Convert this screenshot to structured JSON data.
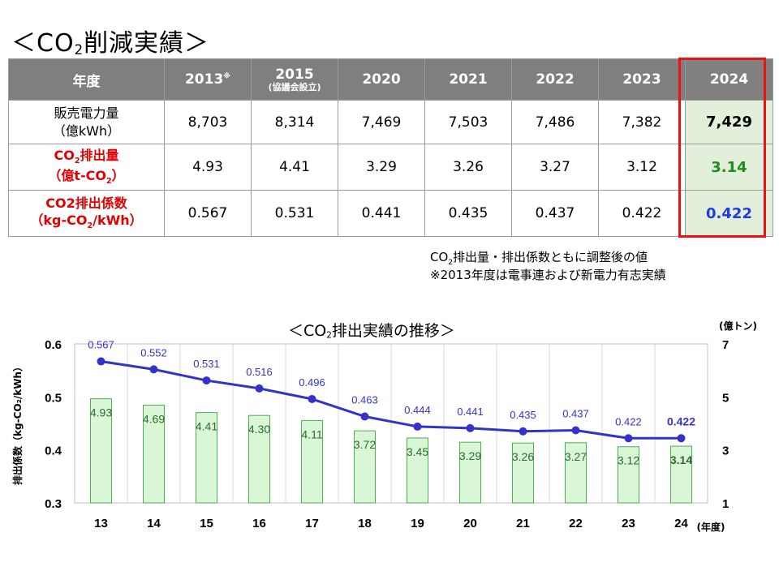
{
  "page_title": {
    "prefix": "＜CO",
    "sub": "2",
    "suffix": "削減実績＞"
  },
  "table": {
    "header_label": "年度",
    "years": [
      {
        "main": "2013",
        "sup": "※",
        "small": ""
      },
      {
        "main": "2015",
        "sup": "",
        "small": "(協議会設立)"
      },
      {
        "main": "2020",
        "sup": "",
        "small": ""
      },
      {
        "main": "2021",
        "sup": "",
        "small": ""
      },
      {
        "main": "2022",
        "sup": "",
        "small": ""
      },
      {
        "main": "2023",
        "sup": "",
        "small": ""
      },
      {
        "main": "2024",
        "sup": "",
        "small": ""
      }
    ],
    "row1": {
      "line1": "販売電力量",
      "line2": "（億kWh）",
      "values": [
        "8,703",
        "8,314",
        "7,469",
        "7,503",
        "7,486",
        "7,382",
        "7,429"
      ]
    },
    "row2": {
      "l1a": "CO",
      "l1sub": "2",
      "l1b": "排出量",
      "l2a": "（億t-CO",
      "l2sub": "2",
      "l2b": "）",
      "values": [
        "4.93",
        "4.41",
        "3.29",
        "3.26",
        "3.27",
        "3.12",
        "3.14"
      ]
    },
    "row3": {
      "l1": "CO2排出係数",
      "l2a": "（kg-CO",
      "l2sub": "2",
      "l2b": "/kWh）",
      "values": [
        "0.567",
        "0.531",
        "0.441",
        "0.435",
        "0.437",
        "0.422",
        "0.422"
      ]
    }
  },
  "notes": {
    "n1a": "CO",
    "n1sub": "2",
    "n1b": "排出量・排出係数ともに調整後の値",
    "n2": "※2013年度は電事連および新電力有志実績"
  },
  "chart_title": {
    "prefix": "＜CO",
    "sub": "2",
    "suffix": "排出実績の推移＞"
  },
  "colors": {
    "bar_fill": "#d9f7d6",
    "bar_stroke": "#4caf50",
    "line": "#3333cc",
    "highlight_border": "#ee1111",
    "header_bg": "#7f7f7f",
    "bar_label": "#2e6b2e"
  },
  "chart_data": {
    "type": "bar+line",
    "categories": [
      "13",
      "14",
      "15",
      "16",
      "17",
      "18",
      "19",
      "20",
      "21",
      "22",
      "23",
      "24"
    ],
    "xlabel": "(年度)",
    "series": [
      {
        "type": "line",
        "axis": "left",
        "values": [
          0.567,
          0.552,
          0.531,
          0.516,
          0.496,
          0.463,
          0.444,
          0.441,
          0.435,
          0.437,
          0.422,
          0.422
        ]
      },
      {
        "type": "bar",
        "axis": "right",
        "values": [
          4.93,
          4.69,
          4.41,
          4.3,
          4.11,
          3.72,
          3.45,
          3.29,
          3.26,
          3.27,
          3.12,
          3.14
        ]
      }
    ],
    "line_labels": [
      "0.567",
      "0.552",
      "0.531",
      "0.516",
      "0.496",
      "0.463",
      "0.444",
      "0.441",
      "0.435",
      "0.437",
      "0.422",
      "0.422"
    ],
    "bar_labels": [
      "4.93",
      "4.69",
      "4.41",
      "4.30",
      "4.11",
      "3.72",
      "3.45",
      "3.29",
      "3.26",
      "3.27",
      "3.12",
      "3.14"
    ],
    "bold_last": true,
    "y_left": {
      "label": "排出係数（kg-CO₂/kWh）",
      "min": 0.3,
      "max": 0.6,
      "ticks": [
        "0.3",
        "0.4",
        "0.5",
        "0.6"
      ]
    },
    "y_right": {
      "label": "(億トン)",
      "min": 1,
      "max": 7,
      "ticks": [
        "1",
        "3",
        "5",
        "7"
      ]
    }
  }
}
